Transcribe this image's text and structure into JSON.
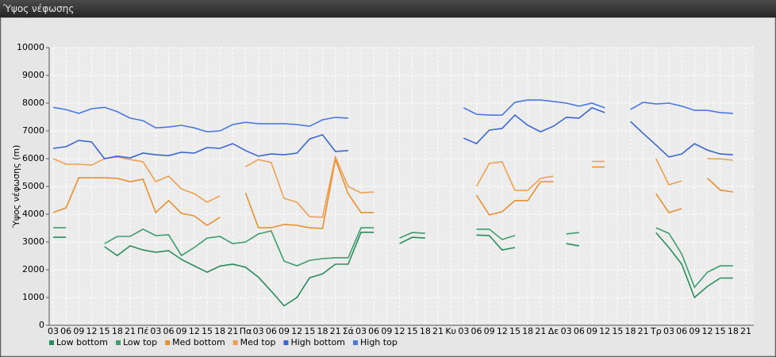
{
  "header": {
    "title": "Ύψος νέφωσης"
  },
  "chart_data": {
    "type": "line",
    "y_label": "Ύψος νέφωσης (m)",
    "categories": [
      "03",
      "06",
      "09",
      "12",
      "15",
      "18",
      "21",
      "Πέ",
      "03",
      "06",
      "09",
      "12",
      "15",
      "18",
      "21",
      "Πα",
      "03",
      "06",
      "09",
      "12",
      "15",
      "18",
      "21",
      "Σά",
      "03",
      "06",
      "09",
      "12",
      "15",
      "18",
      "21",
      "Κυ",
      "03",
      "06",
      "09",
      "12",
      "15",
      "18",
      "21",
      "Δε",
      "03",
      "06",
      "09",
      "12",
      "15",
      "18",
      "21",
      "Τρ",
      "03",
      "06",
      "09",
      "12",
      "15",
      "18",
      "21"
    ],
    "ylim": [
      0,
      10000
    ],
    "yticks": [
      0,
      1000,
      2000,
      3000,
      4000,
      5000,
      6000,
      7000,
      8000,
      9000,
      10000
    ],
    "grid": true,
    "legend": "bottom",
    "series": [
      {
        "name": "Low bottom",
        "color": "#2a8c5a",
        "values": [
          3170,
          3170,
          null,
          null,
          2830,
          2510,
          2860,
          2710,
          2630,
          2690,
          2370,
          2140,
          1910,
          2130,
          2200,
          2090,
          1730,
          1230,
          700,
          1000,
          1710,
          1850,
          2200,
          2200,
          3350,
          3350,
          null,
          2940,
          3170,
          3140,
          null,
          null,
          null,
          3250,
          3230,
          2710,
          2800,
          null,
          null,
          null,
          2940,
          2860,
          null,
          null,
          null,
          null,
          null,
          3330,
          2800,
          2200,
          1000,
          1400,
          1700,
          1700,
          null
        ]
      },
      {
        "name": "Low top",
        "color": "#3c9e6c",
        "values": [
          3510,
          3510,
          null,
          null,
          2940,
          3200,
          3200,
          3460,
          3230,
          3260,
          2510,
          2800,
          3140,
          3200,
          2940,
          3000,
          3290,
          3400,
          2310,
          2140,
          2340,
          2400,
          2430,
          2430,
          3510,
          3510,
          null,
          3140,
          3340,
          3310,
          null,
          null,
          null,
          3460,
          3460,
          3090,
          3230,
          null,
          null,
          null,
          3290,
          3340,
          null,
          null,
          null,
          null,
          null,
          3510,
          3310,
          2570,
          1370,
          1910,
          2140,
          2140,
          null
        ]
      },
      {
        "name": "Med bottom",
        "color": "#e8902e",
        "values": [
          4060,
          4230,
          5310,
          5310,
          5310,
          5290,
          5170,
          5260,
          4060,
          4490,
          4030,
          3940,
          3600,
          3890,
          null,
          4770,
          3510,
          3510,
          3630,
          3600,
          3510,
          3490,
          5970,
          4740,
          4060,
          4060,
          null,
          null,
          null,
          null,
          null,
          null,
          null,
          4690,
          3970,
          4090,
          4490,
          4490,
          5170,
          5170,
          null,
          null,
          5700,
          5700,
          null,
          null,
          null,
          4740,
          4060,
          4200,
          null,
          5300,
          4870,
          4800,
          null
        ]
      },
      {
        "name": "Med top",
        "color": "#eea050",
        "values": [
          6000,
          5800,
          5800,
          5770,
          6000,
          6060,
          5970,
          5890,
          5170,
          5370,
          4910,
          4740,
          4430,
          4660,
          null,
          5710,
          5970,
          5860,
          4570,
          4430,
          3910,
          3890,
          6060,
          5000,
          4770,
          4800,
          null,
          null,
          null,
          null,
          null,
          null,
          null,
          5000,
          5830,
          5890,
          4860,
          4860,
          5290,
          5370,
          null,
          null,
          5900,
          5900,
          null,
          null,
          null,
          6000,
          5060,
          5200,
          null,
          6000,
          5990,
          5950,
          null
        ]
      },
      {
        "name": "High bottom",
        "color": "#3a66d0",
        "values": [
          6370,
          6430,
          6660,
          6600,
          6000,
          6090,
          6030,
          6200,
          6140,
          6110,
          6230,
          6200,
          6400,
          6370,
          6540,
          6290,
          6090,
          6170,
          6140,
          6200,
          6710,
          6860,
          6260,
          6290,
          null,
          null,
          null,
          null,
          null,
          null,
          null,
          null,
          6740,
          6540,
          7030,
          7090,
          7570,
          7200,
          6970,
          7170,
          7490,
          7460,
          7830,
          7660,
          null,
          7340,
          6910,
          6490,
          6060,
          6170,
          6540,
          6310,
          6170,
          6140,
          null
        ]
      },
      {
        "name": "High top",
        "color": "#4a78e0",
        "values": [
          7850,
          7770,
          7630,
          7800,
          7850,
          7690,
          7460,
          7370,
          7110,
          7140,
          7200,
          7110,
          6970,
          7000,
          7230,
          7310,
          7260,
          7260,
          7260,
          7230,
          7170,
          7400,
          7490,
          7460,
          null,
          null,
          null,
          null,
          null,
          null,
          null,
          null,
          7830,
          7600,
          7570,
          7570,
          8030,
          8110,
          8110,
          8060,
          8000,
          7890,
          8000,
          7830,
          null,
          7770,
          8030,
          7970,
          8000,
          7890,
          7740,
          7740,
          7660,
          7630,
          null
        ]
      }
    ]
  }
}
